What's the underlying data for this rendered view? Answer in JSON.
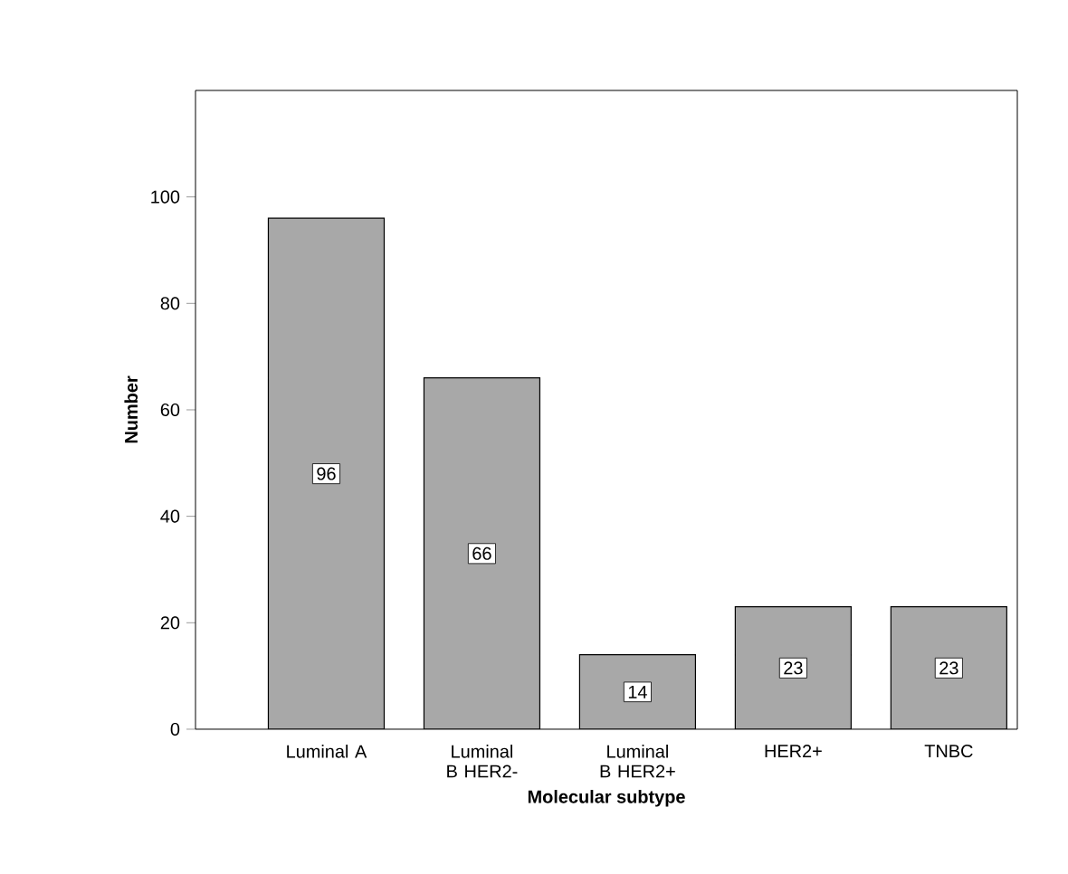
{
  "chart_data": {
    "type": "bar",
    "xlabel": "Molecular subtype",
    "ylabel": "Number",
    "categories": [
      "Luminal A",
      "Luminal B HER2-",
      "Luminal B HER2+",
      "HER2+",
      "TNBC"
    ],
    "values": [
      96,
      66,
      14,
      23,
      23
    ],
    "color": "#a8a8a8",
    "data_labels": true,
    "ylim": [
      0,
      120
    ],
    "yticks": [
      0,
      20,
      40,
      60,
      80,
      100
    ],
    "grid": false
  }
}
